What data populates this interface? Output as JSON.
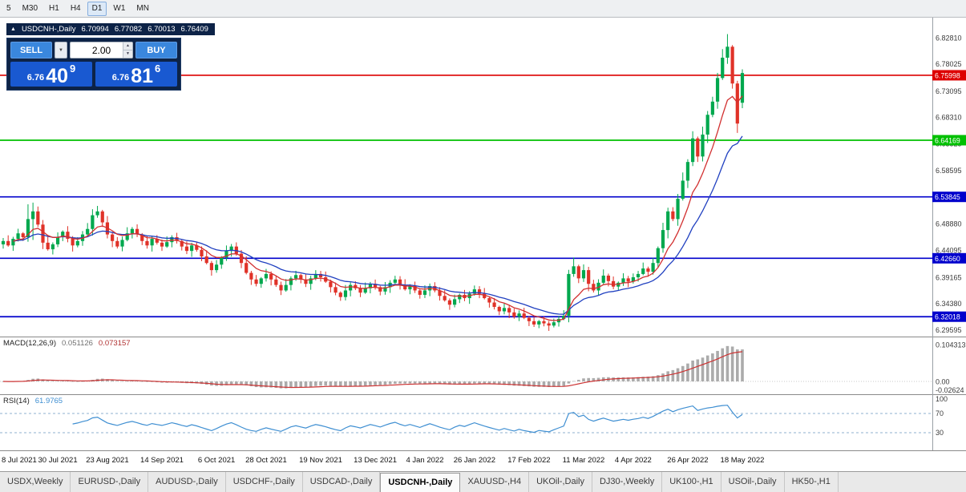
{
  "toolbar": {
    "timeframes": [
      "5",
      "M30",
      "H1",
      "H4",
      "D1",
      "W1",
      "MN"
    ],
    "active": "D1"
  },
  "chart_header": {
    "symbol_label": "USDCNH-,Daily",
    "open": "6.70994",
    "high": "6.77082",
    "low": "6.70013",
    "close": "6.76409"
  },
  "trade_panel": {
    "sell_label": "SELL",
    "buy_label": "BUY",
    "volume": "2.00",
    "sell_price": {
      "prefix": "6.76",
      "big": "40",
      "sup": "9"
    },
    "buy_price": {
      "prefix": "6.76",
      "big": "81",
      "sup": "6"
    }
  },
  "tabs": [
    {
      "label": "USDX,Weekly",
      "active": false
    },
    {
      "label": "EURUSD-,Daily",
      "active": false
    },
    {
      "label": "AUDUSD-,Daily",
      "active": false
    },
    {
      "label": "USDCHF-,Daily",
      "active": false
    },
    {
      "label": "USDCAD-,Daily",
      "active": false
    },
    {
      "label": "USDCNH-,Daily",
      "active": true
    },
    {
      "label": "XAUUSD-,H4",
      "active": false
    },
    {
      "label": "UKOil-,Daily",
      "active": false
    },
    {
      "label": "DJ30-,Weekly",
      "active": false
    },
    {
      "label": "UK100-,H1",
      "active": false
    },
    {
      "label": "USOil-,Daily",
      "active": false
    },
    {
      "label": "HK50-,H1",
      "active": false
    }
  ],
  "chart_data": {
    "type": "candlestick",
    "title": "USDCNH-,Daily",
    "price_range": [
      6.284,
      6.865
    ],
    "price_axis_ticks": [
      "6.82810",
      "6.78025",
      "6.73095",
      "6.68310",
      "6.63525",
      "6.58595",
      "6.48880",
      "6.44095",
      "6.39165",
      "6.34380",
      "6.29595"
    ],
    "horizontal_lines": [
      {
        "price": 6.75998,
        "label": "6.75998",
        "color": "#dd0000"
      },
      {
        "price": 6.64169,
        "label": "6.64169",
        "color": "#00c000"
      },
      {
        "price": 6.53845,
        "label": "6.53845",
        "color": "#0000cc"
      },
      {
        "price": 6.4266,
        "label": "6.42660",
        "color": "#0000cc"
      },
      {
        "price": 6.32018,
        "label": "6.32018",
        "color": "#0000cc"
      }
    ],
    "x_labels": [
      {
        "label": "8 Jul 2021",
        "index": 0
      },
      {
        "label": "30 Jul 2021",
        "index": 11
      },
      {
        "label": "23 Aug 2021",
        "index": 21
      },
      {
        "label": "14 Sep 2021",
        "index": 32
      },
      {
        "label": "6 Oct 2021",
        "index": 43
      },
      {
        "label": "28 Oct 2021",
        "index": 53
      },
      {
        "label": "19 Nov 2021",
        "index": 64
      },
      {
        "label": "13 Dec 2021",
        "index": 75
      },
      {
        "label": "4 Jan 2022",
        "index": 85
      },
      {
        "label": "26 Jan 2022",
        "index": 95
      },
      {
        "label": "17 Feb 2022",
        "index": 106
      },
      {
        "label": "11 Mar 2022",
        "index": 117
      },
      {
        "label": "4 Apr 2022",
        "index": 127
      },
      {
        "label": "26 Apr 2022",
        "index": 138
      },
      {
        "label": "18 May 2022",
        "index": 149
      }
    ],
    "first_open": 6.452,
    "closes": [
      6.458,
      6.45,
      6.462,
      6.472,
      6.465,
      6.498,
      6.512,
      6.488,
      6.455,
      6.443,
      6.452,
      6.465,
      6.475,
      6.462,
      6.45,
      6.458,
      6.47,
      6.48,
      6.505,
      6.512,
      6.492,
      6.47,
      6.458,
      6.448,
      6.46,
      6.472,
      6.48,
      6.47,
      6.458,
      6.45,
      6.462,
      6.455,
      6.448,
      6.456,
      6.465,
      6.458,
      6.448,
      6.44,
      6.45,
      6.442,
      6.43,
      6.418,
      6.405,
      6.415,
      6.428,
      6.44,
      6.448,
      6.435,
      6.418,
      6.4,
      6.388,
      6.38,
      6.39,
      6.398,
      6.388,
      6.378,
      6.368,
      6.378,
      6.39,
      6.396,
      6.388,
      6.38,
      6.39,
      6.398,
      6.392,
      6.384,
      6.374,
      6.364,
      6.356,
      6.368,
      6.378,
      6.372,
      6.364,
      6.372,
      6.38,
      6.374,
      6.366,
      6.374,
      6.382,
      6.388,
      6.378,
      6.37,
      6.376,
      6.368,
      6.36,
      6.368,
      6.376,
      6.368,
      6.358,
      6.35,
      6.342,
      6.352,
      6.36,
      6.354,
      6.362,
      6.37,
      6.362,
      6.354,
      6.346,
      6.338,
      6.33,
      6.336,
      6.328,
      6.32,
      6.326,
      6.318,
      6.312,
      6.306,
      6.312,
      6.308,
      6.304,
      6.31,
      6.316,
      6.322,
      6.398,
      6.412,
      6.39,
      6.405,
      6.38,
      6.368,
      6.382,
      6.395,
      6.385,
      6.375,
      6.382,
      6.39,
      6.384,
      6.392,
      6.398,
      6.408,
      6.402,
      6.418,
      6.445,
      6.478,
      6.512,
      6.498,
      6.535,
      6.568,
      6.602,
      6.645,
      6.612,
      6.652,
      6.688,
      6.712,
      6.755,
      6.792,
      6.812,
      6.745,
      6.672,
      6.764
    ],
    "wick_pattern": [
      0.005,
      0.009,
      0.003,
      0.007,
      0.002,
      0.008,
      0.004,
      0.006
    ],
    "candle_overrides": {
      "5": {
        "h": 6.525
      },
      "6": {
        "h": 6.528,
        "l": 6.46
      },
      "18": {
        "h": 6.516
      },
      "19": {
        "h": 6.522
      },
      "114": {
        "l": 6.31
      },
      "115": {
        "h": 6.428
      },
      "146": {
        "h": 6.835
      },
      "147": {
        "h": 6.815
      },
      "148": {
        "l": 6.655
      },
      "149": {
        "o": 6.70994,
        "h": 6.77082,
        "l": 6.70013,
        "c": 6.76409
      }
    },
    "moving_averages": {
      "fast": {
        "span": 8,
        "color": "#d23030"
      },
      "slow": {
        "span": 18,
        "color": "#2040c0"
      }
    },
    "candle_colors": {
      "up": "#00a84e",
      "down": "#e03228"
    },
    "macd": {
      "label": "MACD(12,26,9)",
      "value": "0.051126",
      "signal_value": "0.073157",
      "fast": 12,
      "slow": 26,
      "signal": 9,
      "axis_labels": [
        "0.104313",
        "0.00",
        "-0.02624"
      ],
      "histogram_color": "#ababab",
      "signal_color": "#cc3333"
    },
    "rsi": {
      "label": "RSI(14)",
      "value": "61.9765",
      "period": 14,
      "levels": [
        "100",
        "70",
        "30"
      ],
      "line_color": "#3f8fd2",
      "level_color": "#8fb0cf"
    }
  }
}
